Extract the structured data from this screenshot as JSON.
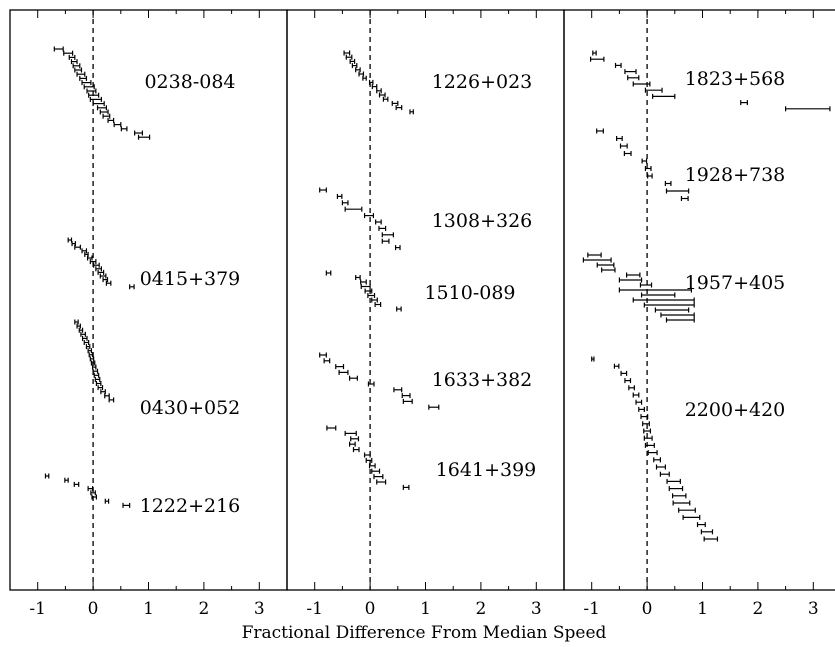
{
  "chart_data": {
    "type": "scatter",
    "xlabel": "Fractional Difference From Median Speed",
    "xlim": [
      -1.5,
      3.5
    ],
    "xticks": [
      "-1",
      "0",
      "1",
      "2",
      "3"
    ],
    "grid": false,
    "reference_line": "dashed vertical line at x = 0",
    "panels": [
      {
        "groups": [
          {
            "name": "0238-084",
            "points": [
              {
                "x": -0.62,
                "e": 0.08
              },
              {
                "x": -0.45,
                "e": 0.08
              },
              {
                "x": -0.38,
                "e": 0.05
              },
              {
                "x": -0.34,
                "e": 0.05
              },
              {
                "x": -0.3,
                "e": 0.06
              },
              {
                "x": -0.27,
                "e": 0.06
              },
              {
                "x": -0.22,
                "e": 0.07
              },
              {
                "x": -0.18,
                "e": 0.06
              },
              {
                "x": -0.12,
                "e": 0.08
              },
              {
                "x": -0.07,
                "e": 0.09
              },
              {
                "x": -0.03,
                "e": 0.08
              },
              {
                "x": 0.01,
                "e": 0.09
              },
              {
                "x": 0.05,
                "e": 0.1
              },
              {
                "x": 0.1,
                "e": 0.1
              },
              {
                "x": 0.16,
                "e": 0.08
              },
              {
                "x": 0.2,
                "e": 0.07
              },
              {
                "x": 0.24,
                "e": 0.06
              },
              {
                "x": 0.32,
                "e": 0.05
              },
              {
                "x": 0.44,
                "e": 0.06
              },
              {
                "x": 0.56,
                "e": 0.05
              },
              {
                "x": 0.82,
                "e": 0.07
              },
              {
                "x": 0.92,
                "e": 0.1
              }
            ]
          },
          {
            "name": "0415+379",
            "points": [
              {
                "x": -0.42,
                "e": 0.03
              },
              {
                "x": -0.35,
                "e": 0.03
              },
              {
                "x": -0.28,
                "e": 0.05
              },
              {
                "x": -0.16,
                "e": 0.04
              },
              {
                "x": -0.12,
                "e": 0.03
              },
              {
                "x": -0.06,
                "e": 0.04
              },
              {
                "x": 0.0,
                "e": 0.05
              },
              {
                "x": 0.06,
                "e": 0.05
              },
              {
                "x": 0.1,
                "e": 0.05
              },
              {
                "x": 0.14,
                "e": 0.05
              },
              {
                "x": 0.18,
                "e": 0.05
              },
              {
                "x": 0.22,
                "e": 0.04
              },
              {
                "x": 0.28,
                "e": 0.04
              },
              {
                "x": 0.7,
                "e": 0.04
              }
            ]
          },
          {
            "name": "0430+052",
            "points": [
              {
                "x": -0.3,
                "e": 0.03
              },
              {
                "x": -0.26,
                "e": 0.03
              },
              {
                "x": -0.22,
                "e": 0.03
              },
              {
                "x": -0.18,
                "e": 0.04
              },
              {
                "x": -0.15,
                "e": 0.04
              },
              {
                "x": -0.12,
                "e": 0.04
              },
              {
                "x": -0.09,
                "e": 0.03
              },
              {
                "x": -0.06,
                "e": 0.03
              },
              {
                "x": -0.04,
                "e": 0.03
              },
              {
                "x": -0.02,
                "e": 0.03
              },
              {
                "x": 0.0,
                "e": 0.03
              },
              {
                "x": 0.02,
                "e": 0.03
              },
              {
                "x": 0.04,
                "e": 0.04
              },
              {
                "x": 0.06,
                "e": 0.04
              },
              {
                "x": 0.08,
                "e": 0.04
              },
              {
                "x": 0.1,
                "e": 0.04
              },
              {
                "x": 0.13,
                "e": 0.04
              },
              {
                "x": 0.18,
                "e": 0.04
              },
              {
                "x": 0.25,
                "e": 0.04
              },
              {
                "x": 0.33,
                "e": 0.04
              }
            ]
          },
          {
            "name": "1222+216",
            "points": [
              {
                "x": -0.83,
                "e": 0.03
              },
              {
                "x": -0.48,
                "e": 0.03
              },
              {
                "x": -0.3,
                "e": 0.04
              },
              {
                "x": -0.05,
                "e": 0.04
              },
              {
                "x": 0.0,
                "e": 0.04
              },
              {
                "x": 0.02,
                "e": 0.04
              },
              {
                "x": 0.25,
                "e": 0.03
              },
              {
                "x": 0.6,
                "e": 0.06
              }
            ]
          }
        ]
      },
      {
        "groups": [
          {
            "name": "1226+023",
            "points": [
              {
                "x": -0.42,
                "e": 0.05
              },
              {
                "x": -0.38,
                "e": 0.05
              },
              {
                "x": -0.32,
                "e": 0.04
              },
              {
                "x": -0.28,
                "e": 0.04
              },
              {
                "x": -0.22,
                "e": 0.04
              },
              {
                "x": -0.16,
                "e": 0.04
              },
              {
                "x": -0.1,
                "e": 0.03
              },
              {
                "x": 0.02,
                "e": 0.03
              },
              {
                "x": 0.08,
                "e": 0.04
              },
              {
                "x": 0.16,
                "e": 0.04
              },
              {
                "x": 0.22,
                "e": 0.05
              },
              {
                "x": 0.28,
                "e": 0.04
              },
              {
                "x": 0.45,
                "e": 0.05
              },
              {
                "x": 0.52,
                "e": 0.05
              },
              {
                "x": 0.75,
                "e": 0.03
              }
            ]
          },
          {
            "name": "1308+326",
            "points": [
              {
                "x": -0.85,
                "e": 0.06
              },
              {
                "x": -0.55,
                "e": 0.04
              },
              {
                "x": -0.45,
                "e": 0.05
              },
              {
                "x": -0.3,
                "e": 0.15
              },
              {
                "x": -0.02,
                "e": 0.08
              },
              {
                "x": 0.15,
                "e": 0.05
              },
              {
                "x": 0.22,
                "e": 0.06
              },
              {
                "x": 0.32,
                "e": 0.1
              },
              {
                "x": 0.28,
                "e": 0.06
              },
              {
                "x": 0.5,
                "e": 0.04
              }
            ]
          },
          {
            "name": "1510-089",
            "points": [
              {
                "x": -0.75,
                "e": 0.04
              },
              {
                "x": -0.22,
                "e": 0.04
              },
              {
                "x": -0.12,
                "e": 0.05
              },
              {
                "x": -0.08,
                "e": 0.08
              },
              {
                "x": -0.03,
                "e": 0.06
              },
              {
                "x": 0.02,
                "e": 0.06
              },
              {
                "x": 0.08,
                "e": 0.05
              },
              {
                "x": 0.14,
                "e": 0.05
              },
              {
                "x": 0.52,
                "e": 0.04
              }
            ]
          },
          {
            "name": "1633+382",
            "points": [
              {
                "x": -0.85,
                "e": 0.06
              },
              {
                "x": -0.78,
                "e": 0.05
              },
              {
                "x": -0.55,
                "e": 0.07
              },
              {
                "x": -0.48,
                "e": 0.08
              },
              {
                "x": -0.3,
                "e": 0.07
              },
              {
                "x": 0.02,
                "e": 0.05
              },
              {
                "x": 0.5,
                "e": 0.07
              },
              {
                "x": 0.65,
                "e": 0.07
              },
              {
                "x": 0.68,
                "e": 0.08
              },
              {
                "x": 1.15,
                "e": 0.09
              }
            ]
          },
          {
            "name": "1641+399",
            "points": [
              {
                "x": -0.7,
                "e": 0.08
              },
              {
                "x": -0.35,
                "e": 0.1
              },
              {
                "x": -0.28,
                "e": 0.07
              },
              {
                "x": -0.32,
                "e": 0.05
              },
              {
                "x": -0.25,
                "e": 0.05
              },
              {
                "x": -0.05,
                "e": 0.05
              },
              {
                "x": -0.02,
                "e": 0.05
              },
              {
                "x": 0.04,
                "e": 0.05
              },
              {
                "x": 0.1,
                "e": 0.07
              },
              {
                "x": 0.15,
                "e": 0.08
              },
              {
                "x": 0.2,
                "e": 0.08
              },
              {
                "x": 0.65,
                "e": 0.05
              }
            ]
          }
        ]
      },
      {
        "groups": [
          {
            "name": "1823+568",
            "points": [
              {
                "x": -0.95,
                "e": 0.03
              },
              {
                "x": -0.9,
                "e": 0.12
              },
              {
                "x": -0.52,
                "e": 0.05
              },
              {
                "x": -0.3,
                "e": 0.1
              },
              {
                "x": -0.25,
                "e": 0.1
              },
              {
                "x": -0.1,
                "e": 0.15
              },
              {
                "x": 0.12,
                "e": 0.15
              },
              {
                "x": 0.3,
                "e": 0.2
              },
              {
                "x": 1.75,
                "e": 0.06
              },
              {
                "x": 2.9,
                "e": 0.4
              }
            ]
          },
          {
            "name": "1928+738",
            "points": [
              {
                "x": -0.85,
                "e": 0.06
              },
              {
                "x": -0.5,
                "e": 0.05
              },
              {
                "x": -0.42,
                "e": 0.06
              },
              {
                "x": -0.35,
                "e": 0.06
              },
              {
                "x": -0.05,
                "e": 0.04
              },
              {
                "x": 0.02,
                "e": 0.05
              },
              {
                "x": 0.05,
                "e": 0.04
              },
              {
                "x": 0.38,
                "e": 0.05
              },
              {
                "x": 0.55,
                "e": 0.2
              },
              {
                "x": 0.68,
                "e": 0.06
              }
            ]
          },
          {
            "name": "1957+405",
            "points": [
              {
                "x": -0.95,
                "e": 0.12
              },
              {
                "x": -0.9,
                "e": 0.25
              },
              {
                "x": -0.75,
                "e": 0.15
              },
              {
                "x": -0.7,
                "e": 0.12
              },
              {
                "x": -0.25,
                "e": 0.12
              },
              {
                "x": -0.3,
                "e": 0.2
              },
              {
                "x": -0.02,
                "e": 0.1
              },
              {
                "x": 0.15,
                "e": 0.65
              },
              {
                "x": 0.2,
                "e": 0.3
              },
              {
                "x": 0.3,
                "e": 0.55
              },
              {
                "x": 0.4,
                "e": 0.45
              },
              {
                "x": 0.45,
                "e": 0.3
              },
              {
                "x": 0.55,
                "e": 0.3
              },
              {
                "x": 0.6,
                "e": 0.25
              }
            ]
          },
          {
            "name": "2200+420",
            "points": [
              {
                "x": -0.98,
                "e": 0.02
              },
              {
                "x": -0.55,
                "e": 0.04
              },
              {
                "x": -0.42,
                "e": 0.05
              },
              {
                "x": -0.35,
                "e": 0.05
              },
              {
                "x": -0.28,
                "e": 0.05
              },
              {
                "x": -0.2,
                "e": 0.05
              },
              {
                "x": -0.15,
                "e": 0.05
              },
              {
                "x": -0.1,
                "e": 0.05
              },
              {
                "x": -0.05,
                "e": 0.06
              },
              {
                "x": -0.02,
                "e": 0.06
              },
              {
                "x": 0.0,
                "e": 0.06
              },
              {
                "x": 0.02,
                "e": 0.07
              },
              {
                "x": 0.05,
                "e": 0.08
              },
              {
                "x": 0.1,
                "e": 0.08
              },
              {
                "x": 0.18,
                "e": 0.06
              },
              {
                "x": 0.25,
                "e": 0.08
              },
              {
                "x": 0.32,
                "e": 0.08
              },
              {
                "x": 0.48,
                "e": 0.12
              },
              {
                "x": 0.52,
                "e": 0.12
              },
              {
                "x": 0.58,
                "e": 0.12
              },
              {
                "x": 0.62,
                "e": 0.15
              },
              {
                "x": 0.72,
                "e": 0.15
              },
              {
                "x": 0.8,
                "e": 0.15
              },
              {
                "x": 0.98,
                "e": 0.07
              },
              {
                "x": 1.08,
                "e": 0.1
              },
              {
                "x": 1.15,
                "e": 0.12
              }
            ]
          }
        ]
      }
    ]
  }
}
